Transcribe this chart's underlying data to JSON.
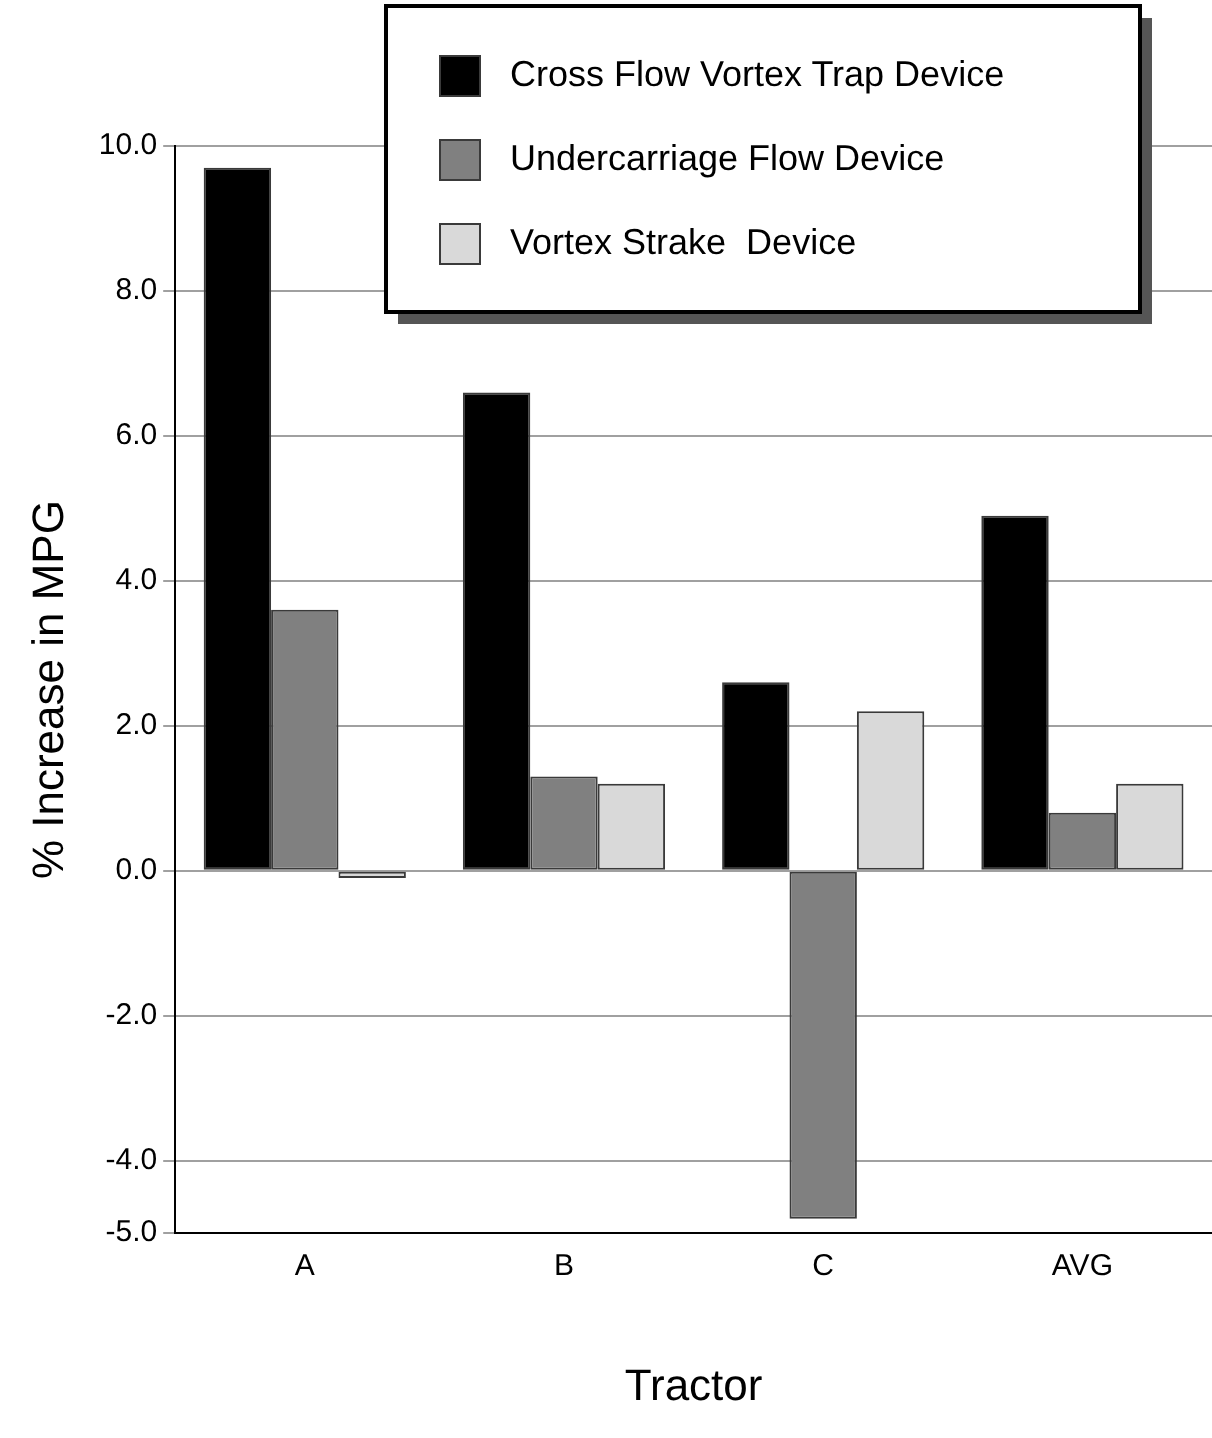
{
  "chart_data": {
    "type": "bar",
    "xlabel": "Tractor",
    "ylabel": "% Increase in MPG",
    "categories": [
      "A",
      "B",
      "C",
      "AVG"
    ],
    "series": [
      {
        "name": "Cross Flow Vortex Trap Device",
        "color": "#000000",
        "values": [
          9.7,
          6.6,
          2.6,
          4.9
        ]
      },
      {
        "name": "Undercarriage Flow Device",
        "color": "#808080",
        "values": [
          3.6,
          1.3,
          -4.8,
          0.8
        ]
      },
      {
        "name": "Vortex Strake  Device",
        "color": "#d9d9d9",
        "values": [
          -0.1,
          1.2,
          2.2,
          1.2
        ]
      }
    ],
    "ylim": [
      -5,
      10
    ],
    "yticks": [
      {
        "value": -5,
        "label": "-5.0"
      },
      {
        "value": -4,
        "label": "-4.0"
      },
      {
        "value": -2,
        "label": "-2.0"
      },
      {
        "value": 0,
        "label": "0.0"
      },
      {
        "value": 2,
        "label": "2.0"
      },
      {
        "value": 4,
        "label": "4.0"
      },
      {
        "value": 6,
        "label": "6.0"
      },
      {
        "value": 8,
        "label": "8.0"
      },
      {
        "value": 10,
        "label": "10.0"
      }
    ],
    "grid": "y",
    "legend": "top"
  }
}
